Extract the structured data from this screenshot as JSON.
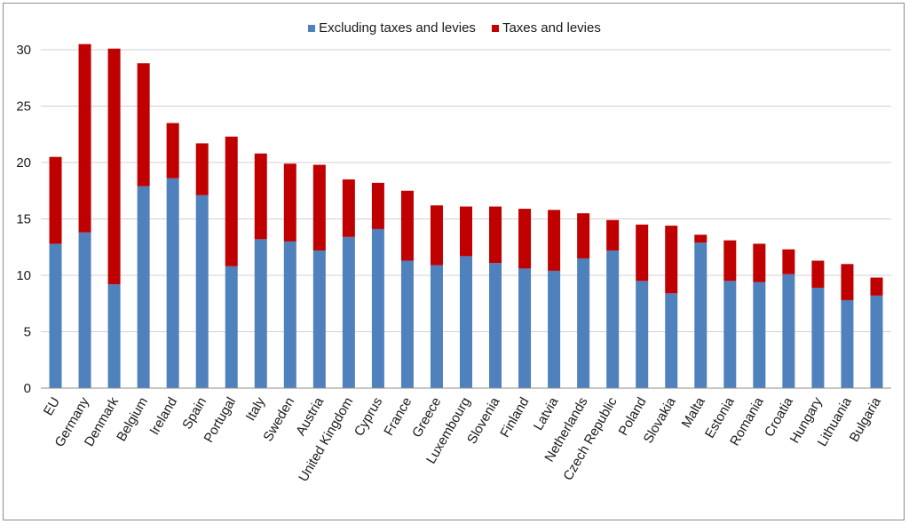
{
  "chart_data": {
    "type": "bar",
    "stacked": true,
    "categories": [
      "EU",
      "Germany",
      "Denmark",
      "Belgium",
      "Ireland",
      "Spain",
      "Portugal",
      "Italy",
      "Sweden",
      "Austria",
      "United Kingdom",
      "Cyprus",
      "France",
      "Greece",
      "Luxembourg",
      "Slovenia",
      "Finland",
      "Latvia",
      "Netherlands",
      "Czech Republic",
      "Poland",
      "Slovakia",
      "Malta",
      "Estonia",
      "Romania",
      "Croatia",
      "Hungary",
      "Lithuania",
      "Bulgaria"
    ],
    "series": [
      {
        "name": "Excluding taxes and levies",
        "color": "#4f81bd",
        "values": [
          12.8,
          13.8,
          9.2,
          17.9,
          18.6,
          17.1,
          10.8,
          13.2,
          13.0,
          12.2,
          13.4,
          14.1,
          11.3,
          10.9,
          11.7,
          11.1,
          10.6,
          10.4,
          11.5,
          12.2,
          9.5,
          8.4,
          12.9,
          9.5,
          9.4,
          10.1,
          8.9,
          7.8,
          8.2
        ]
      },
      {
        "name": "Taxes and levies",
        "color": "#c00000",
        "values": [
          7.7,
          16.7,
          20.9,
          10.9,
          4.9,
          4.6,
          11.5,
          7.6,
          6.9,
          7.6,
          5.1,
          4.1,
          6.2,
          5.3,
          4.4,
          5.0,
          5.3,
          5.4,
          4.0,
          2.7,
          5.0,
          6.0,
          0.7,
          3.6,
          3.4,
          2.2,
          2.4,
          3.2,
          1.6
        ]
      }
    ],
    "ylim": [
      0,
      30
    ],
    "yticks": [
      "0",
      "5",
      "10",
      "15",
      "20",
      "25",
      "30"
    ],
    "grid": true,
    "legend": "top-center"
  }
}
